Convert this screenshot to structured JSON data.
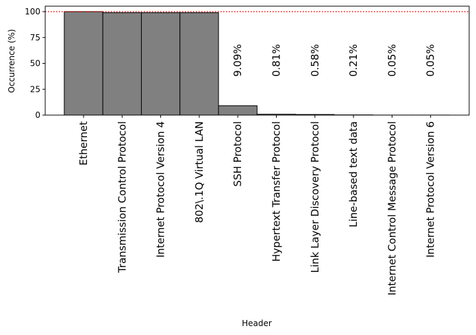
{
  "chart_data": {
    "type": "bar",
    "xlabel": "Header",
    "ylabel": "Occurrence (%)",
    "categories": [
      "Ethernet",
      "Transmission Control Protocol",
      "Internet Protocol Version 4",
      "802\\.1Q Virtual LAN",
      "SSH Protocol",
      "Hypertext Transfer Protocol",
      "Link Layer Discovery Protocol",
      "Line-based text data",
      "Internet Control Message Protocol",
      "Internet Protocol Version 6"
    ],
    "values": [
      100,
      99,
      99,
      99,
      9.09,
      0.81,
      0.58,
      0.21,
      0.05,
      0.05
    ],
    "value_labels": [
      null,
      null,
      null,
      null,
      "9.09%",
      "0.81%",
      "0.58%",
      "0.21%",
      "0.05%",
      "0.05%"
    ],
    "color": "#808080",
    "edgecolor": "#000000",
    "ylim": [
      0,
      105.3
    ],
    "yticks": [
      0,
      25,
      50,
      75,
      100
    ],
    "hline": {
      "value": 100,
      "color": "#ff0000"
    }
  }
}
